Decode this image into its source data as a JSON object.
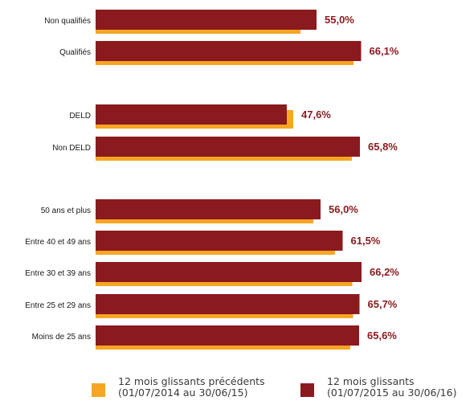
{
  "chart_data": {
    "type": "bar",
    "orientation": "horizontal",
    "categories": [
      "Non qualifiés",
      "Qualifiés",
      "DELD",
      "Non DELD",
      "50 ans et plus",
      "Entre 40 et 49 ans",
      "Entre 30 et 39 ans",
      "Entre 25 et 29 ans",
      "Moins de 25 ans"
    ],
    "groups": [
      [
        0,
        1
      ],
      [
        2,
        3
      ],
      [
        4,
        5,
        6,
        7,
        8
      ]
    ],
    "series": [
      {
        "name": "12 mois glissants précédents (01/07/2014 au 30/06/15)",
        "color": "#f5a623",
        "values": [
          52.0,
          65.2,
          50.2,
          64.8,
          55.2,
          60.6,
          64.9,
          65.1,
          64.4
        ]
      },
      {
        "name": "12 mois glissants (01/07/2015 au 30/06/16)",
        "color": "#8b1a1e",
        "values": [
          55.0,
          66.1,
          47.6,
          65.8,
          56.0,
          61.5,
          66.2,
          65.7,
          65.6
        ]
      }
    ],
    "value_labels": [
      "55,0%",
      "66,1%",
      "47,6%",
      "65,8%",
      "56,0%",
      "61,5%",
      "66,2%",
      "65,7%",
      "65,6%"
    ],
    "xlim": [
      0,
      70
    ],
    "grid": false,
    "legend_position": "bottom"
  },
  "legend": {
    "previous": {
      "line1": "12 mois glissants précédents",
      "line2": "(01/07/2014 au 30/06/15)",
      "color": "#f5a623"
    },
    "current": {
      "line1": "12 mois glissants",
      "line2": "(01/07/2015 au 30/06/16)",
      "color": "#8b1a1e"
    }
  }
}
